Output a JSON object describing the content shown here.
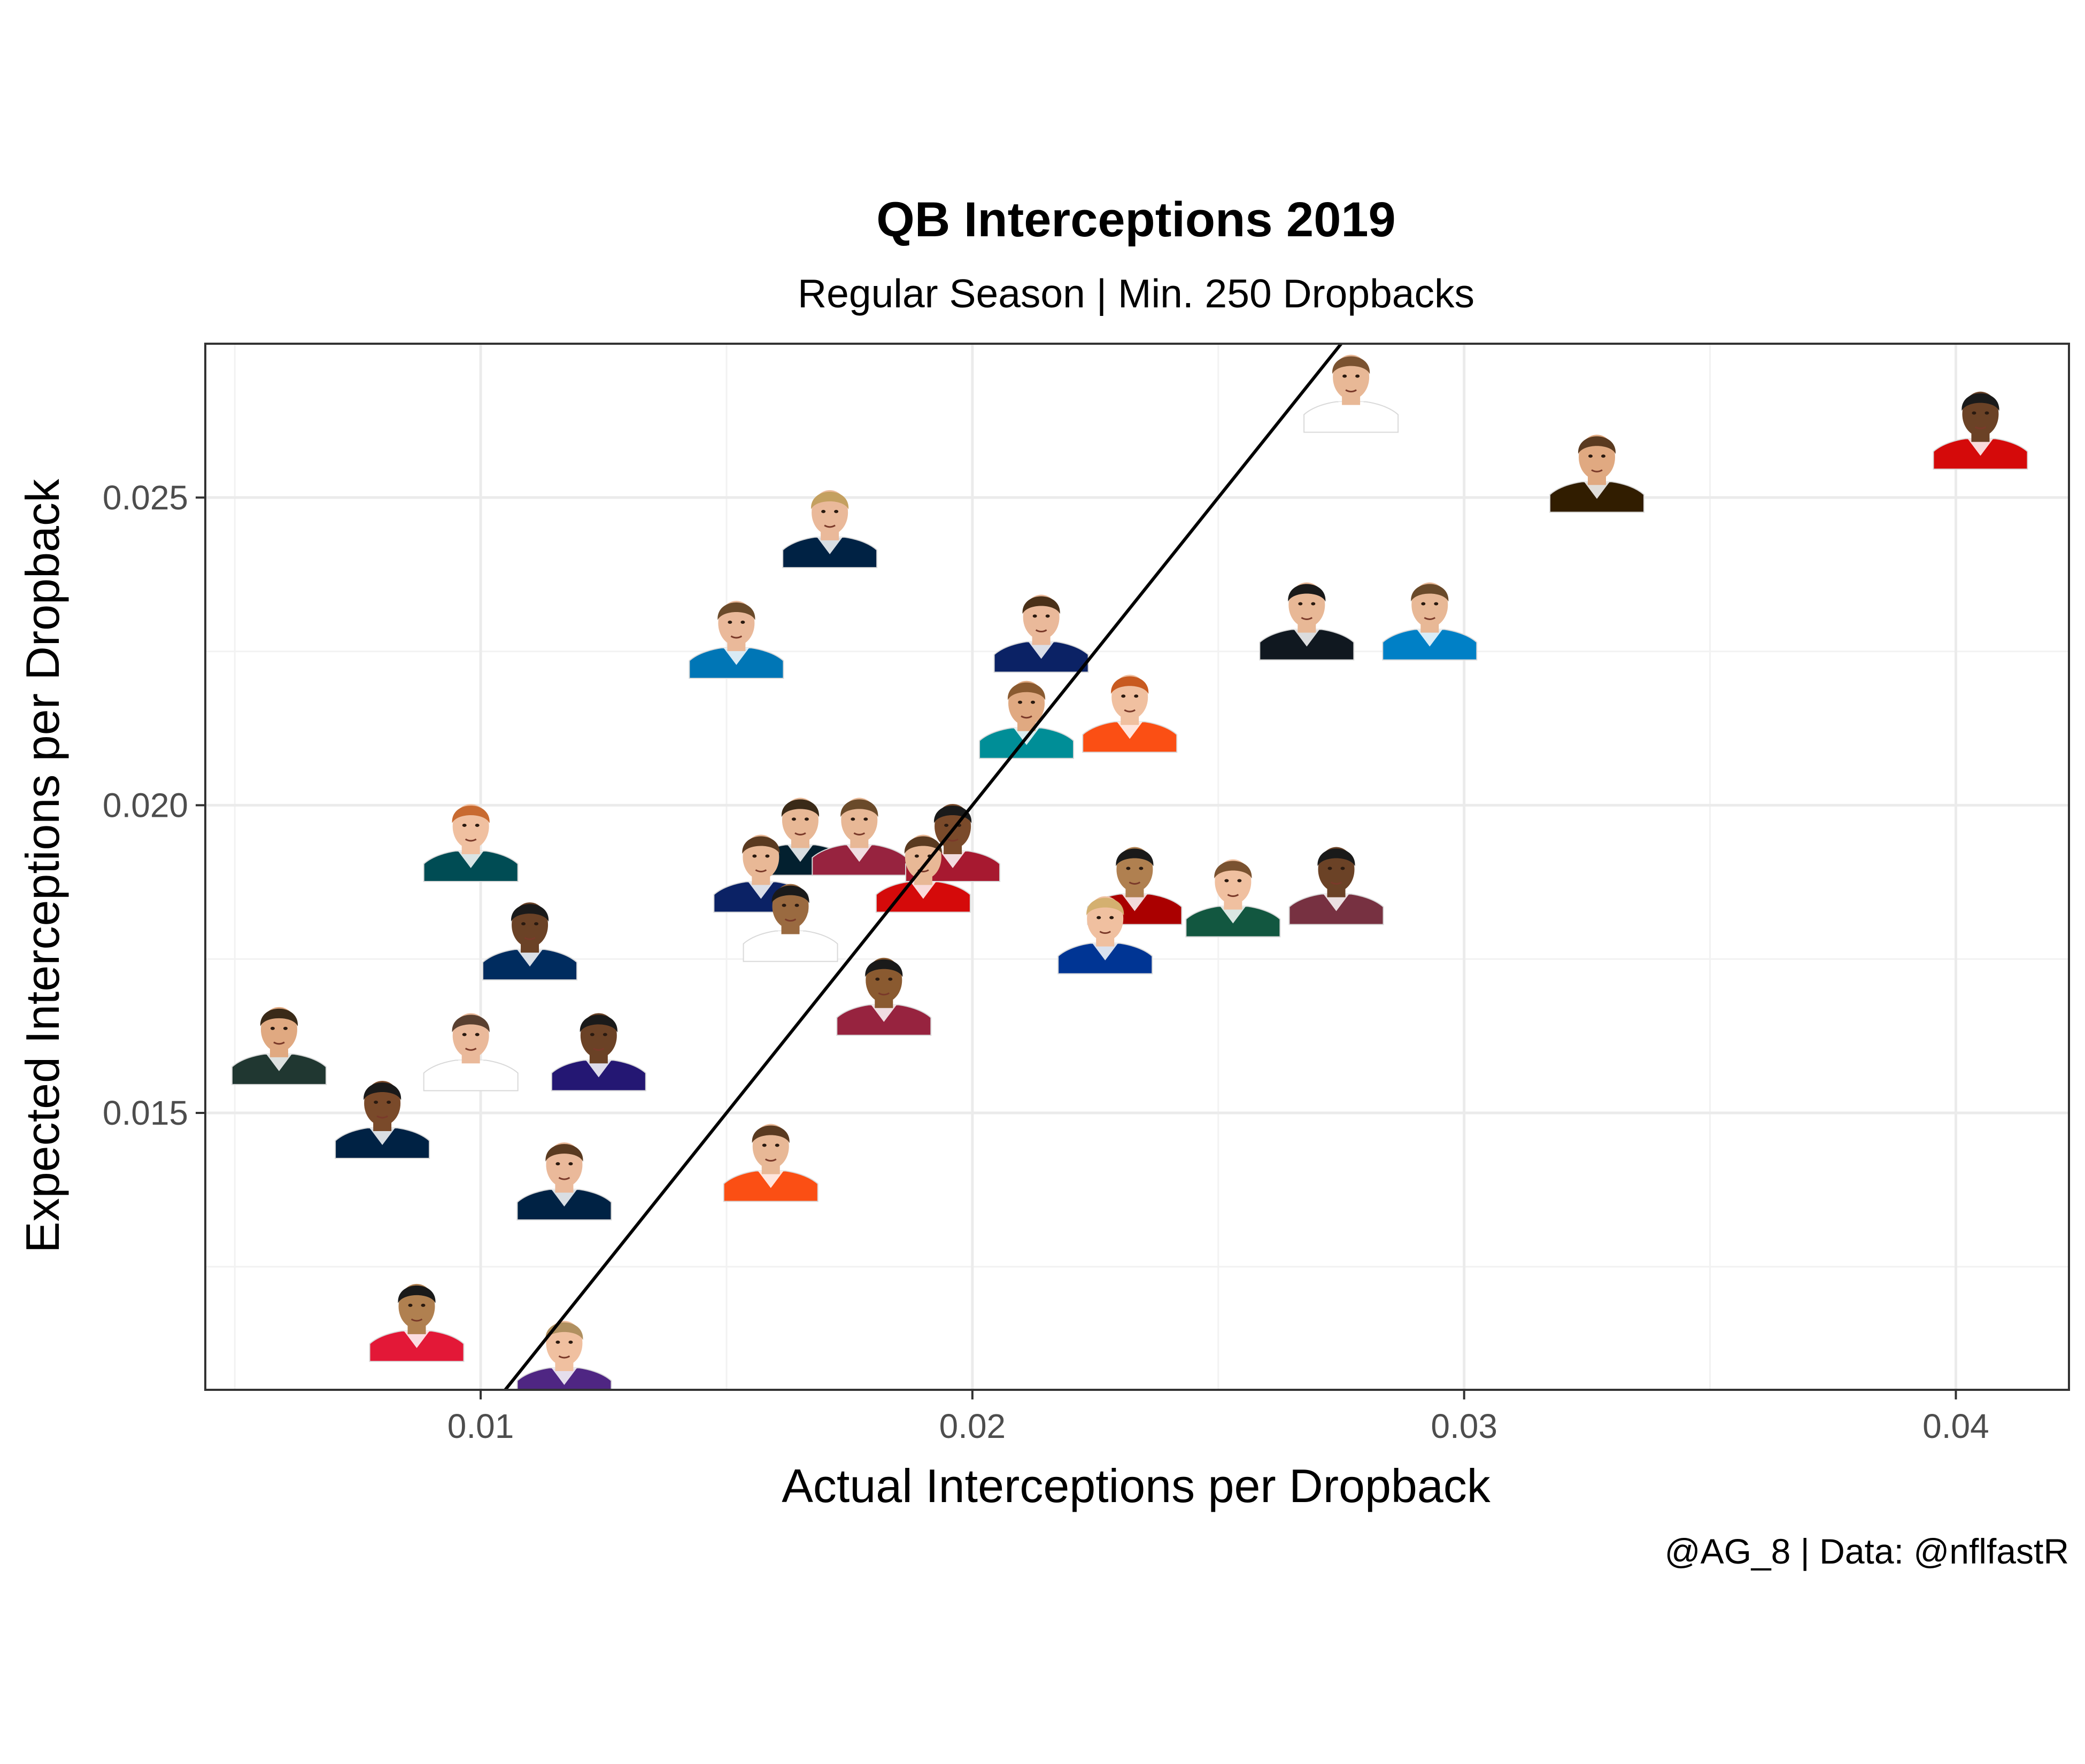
{
  "chart_data": {
    "type": "scatter",
    "title": "QB Interceptions 2019",
    "subtitle": "Regular Season | Min. 250 Dropbacks",
    "xlabel": "Actual Interceptions per Dropback",
    "ylabel": "Expected Interceptions per Dropback",
    "caption": "@AG_8 | Data: @nflfastR",
    "xlim": [
      0.0044,
      0.0423
    ],
    "ylim": [
      0.0105,
      0.0275
    ],
    "x_ticks": [
      0.01,
      0.02,
      0.03,
      0.04
    ],
    "x_tick_labels": [
      "0.01",
      "0.02",
      "0.03",
      "0.04"
    ],
    "y_ticks": [
      0.015,
      0.02,
      0.025
    ],
    "y_tick_labels": [
      "0.015",
      "0.020",
      "0.025"
    ],
    "grid": true,
    "reference_line": {
      "slope": 1,
      "intercept": 0
    },
    "marker": "player-headshot",
    "points": [
      {
        "x": 0.0277,
        "y": 0.0268,
        "jersey": "#ffffff",
        "skin": "#e8b896",
        "hair": "#7a5230"
      },
      {
        "x": 0.0405,
        "y": 0.0262,
        "jersey": "#d50a0a",
        "skin": "#6b4226",
        "hair": "#1a1a1a"
      },
      {
        "x": 0.0327,
        "y": 0.0255,
        "jersey": "#311d00",
        "skin": "#e0a981",
        "hair": "#5a3a20"
      },
      {
        "x": 0.0171,
        "y": 0.0246,
        "jersey": "#002244",
        "skin": "#eab99a",
        "hair": "#c4a060"
      },
      {
        "x": 0.0152,
        "y": 0.0228,
        "jersey": "#0076b6",
        "skin": "#eab99a",
        "hair": "#6a4a2a"
      },
      {
        "x": 0.0214,
        "y": 0.0229,
        "jersey": "#0b2265",
        "skin": "#eab99a",
        "hair": "#4a3018"
      },
      {
        "x": 0.0268,
        "y": 0.0231,
        "jersey": "#101820",
        "skin": "#e8b896",
        "hair": "#1a1a1a"
      },
      {
        "x": 0.0293,
        "y": 0.0231,
        "jersey": "#0080c6",
        "skin": "#e8b896",
        "hair": "#6a4a2a"
      },
      {
        "x": 0.0211,
        "y": 0.0215,
        "jersey": "#008e97",
        "skin": "#e0a981",
        "hair": "#8a5a30"
      },
      {
        "x": 0.0232,
        "y": 0.0216,
        "jersey": "#fb4f14",
        "skin": "#f0c0a0",
        "hair": "#c85a20"
      },
      {
        "x": 0.0098,
        "y": 0.0195,
        "jersey": "#004c54",
        "skin": "#f0c0a0",
        "hair": "#c86a30"
      },
      {
        "x": 0.0165,
        "y": 0.0196,
        "jersey": "#03202f",
        "skin": "#e8b896",
        "hair": "#3a2a18"
      },
      {
        "x": 0.0177,
        "y": 0.0196,
        "jersey": "#97233f",
        "skin": "#e8b896",
        "hair": "#6a4a2a"
      },
      {
        "x": 0.0196,
        "y": 0.0195,
        "jersey": "#a71930",
        "skin": "#7a4a2a",
        "hair": "#1a1a1a"
      },
      {
        "x": 0.019,
        "y": 0.019,
        "jersey": "#d50a0a",
        "skin": "#e8b896",
        "hair": "#5a3a20"
      },
      {
        "x": 0.0157,
        "y": 0.019,
        "jersey": "#0b2265",
        "skin": "#e8b896",
        "hair": "#5a3a20"
      },
      {
        "x": 0.0163,
        "y": 0.0182,
        "jersey": "#ffffff",
        "skin": "#9a6a40",
        "hair": "#1a1a1a"
      },
      {
        "x": 0.0233,
        "y": 0.0188,
        "jersey": "#aa0000",
        "skin": "#b08050",
        "hair": "#1a1a1a"
      },
      {
        "x": 0.0227,
        "y": 0.018,
        "jersey": "#003594",
        "skin": "#f0c0a0",
        "hair": "#d4b070"
      },
      {
        "x": 0.0253,
        "y": 0.0186,
        "jersey": "#125740",
        "skin": "#f0c0a0",
        "hair": "#7a5230"
      },
      {
        "x": 0.0274,
        "y": 0.0188,
        "jersey": "#773141",
        "skin": "#6b4226",
        "hair": "#1a1a1a"
      },
      {
        "x": 0.011,
        "y": 0.0179,
        "jersey": "#002c5f",
        "skin": "#6b4226",
        "hair": "#1a1a1a"
      },
      {
        "x": 0.0182,
        "y": 0.017,
        "jersey": "#97233f",
        "skin": "#8a5a30",
        "hair": "#1a1a1a"
      },
      {
        "x": 0.0059,
        "y": 0.0162,
        "jersey": "#203731",
        "skin": "#e0a981",
        "hair": "#3a2a18"
      },
      {
        "x": 0.0098,
        "y": 0.0161,
        "jersey": "#ffffff",
        "skin": "#eab99a",
        "hair": "#5a4030"
      },
      {
        "x": 0.0124,
        "y": 0.0161,
        "jersey": "#241773",
        "skin": "#6b4226",
        "hair": "#1a1a1a"
      },
      {
        "x": 0.008,
        "y": 0.015,
        "jersey": "#002244",
        "skin": "#7a4a2a",
        "hair": "#1a1a1a"
      },
      {
        "x": 0.0159,
        "y": 0.0143,
        "jersey": "#fb4f14",
        "skin": "#e8b896",
        "hair": "#5a3a20"
      },
      {
        "x": 0.0117,
        "y": 0.014,
        "jersey": "#002244",
        "skin": "#eab99a",
        "hair": "#5a3a20"
      },
      {
        "x": 0.0087,
        "y": 0.0117,
        "jersey": "#e31837",
        "skin": "#b08050",
        "hair": "#1a1a1a"
      },
      {
        "x": 0.0117,
        "y": 0.0111,
        "jersey": "#4f2683",
        "skin": "#f0c0a0",
        "hair": "#b09060"
      }
    ]
  }
}
